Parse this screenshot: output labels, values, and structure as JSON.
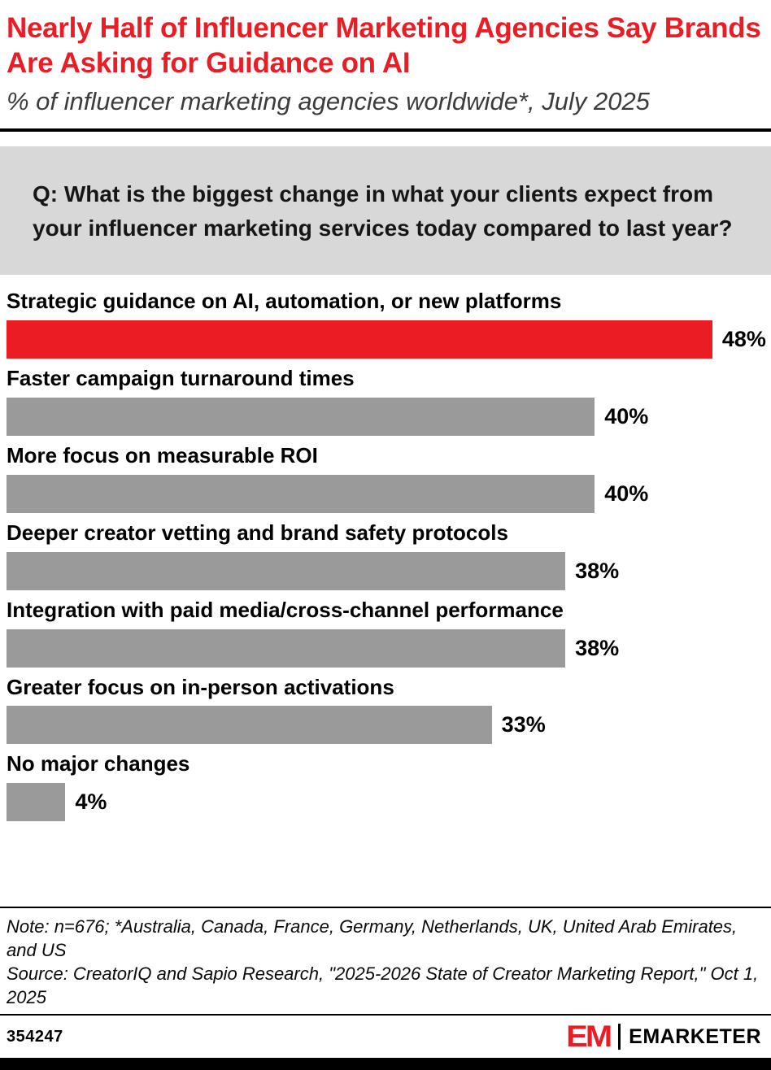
{
  "header": {
    "title": "Nearly Half of Influencer Marketing Agencies Say Brands Are Asking for Guidance on AI",
    "subtitle": "% of influencer marketing agencies worldwide*, July 2025"
  },
  "question": {
    "text": "Q: What is the biggest change in what your clients expect from your influencer marketing services today compared to last year?"
  },
  "chart_data": {
    "type": "bar",
    "orientation": "horizontal",
    "title": "Nearly Half of Influencer Marketing Agencies Say Brands Are Asking for Guidance on AI",
    "subtitle": "% of influencer marketing agencies worldwide*, July 2025",
    "categories": [
      "Strategic guidance on AI, automation, or new platforms",
      "Faster campaign turnaround times",
      "More focus on measurable ROI",
      "Deeper creator vetting and brand safety protocols",
      "Integration with paid media/cross-channel performance",
      "Greater focus on in-person activations",
      "No major changes"
    ],
    "values": [
      48,
      40,
      40,
      38,
      38,
      33,
      4
    ],
    "value_labels": [
      "48%",
      "40%",
      "40%",
      "38%",
      "38%",
      "33%",
      "4%"
    ],
    "bar_colors": [
      "#EC1C24",
      "#9A9A9A",
      "#9A9A9A",
      "#9A9A9A",
      "#9A9A9A",
      "#9A9A9A",
      "#9A9A9A"
    ],
    "xlim": [
      0,
      50
    ],
    "grid": false,
    "legend": false,
    "value_suffix": "%"
  },
  "footer": {
    "note": "Note: n=676; *Australia, Canada, France, Germany, Netherlands, UK, United Arab Emirates, and US",
    "source": "Source: CreatorIQ and Sapio Research, \"2025-2026 State of Creator Marketing Report,\" Oct 1, 2025",
    "chart_id": "354247",
    "logo_mark": "EM",
    "brand": "EMARKETER"
  },
  "colors": {
    "accent_red": "#EC1C24",
    "bar_gray": "#9A9A9A",
    "question_bg": "#D8D8D8"
  }
}
